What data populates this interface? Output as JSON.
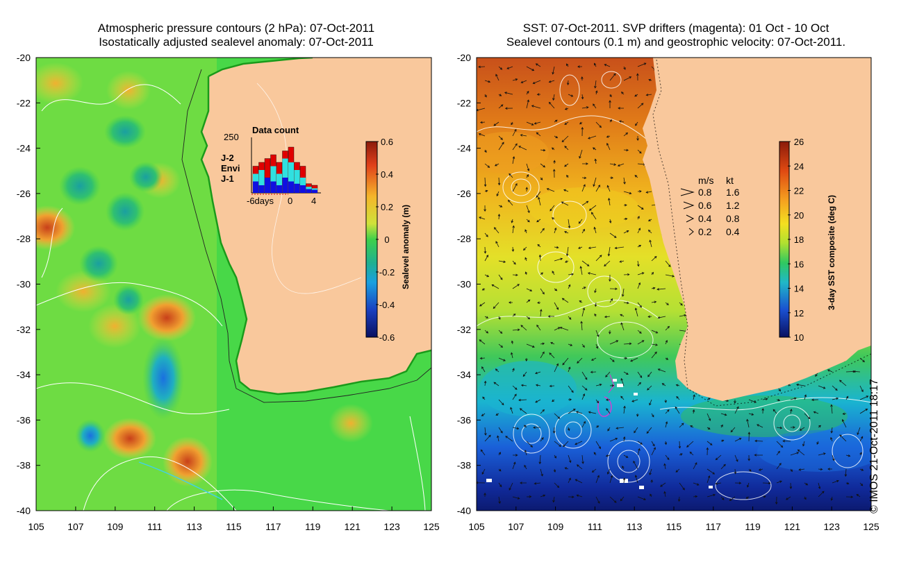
{
  "left_panel": {
    "title_line1": "Atmospheric pressure contours (2 hPa): 07-Oct-2011",
    "title_line2": "Isostatically adjusted sealevel anomaly: 07-Oct-2011",
    "colorbar_label": "Sealevel anomaly (m)",
    "colorbar_ticks": [
      "0.6",
      "0.4",
      "0.2",
      "0",
      "-0.2",
      "-0.4",
      "-0.6"
    ],
    "inset": {
      "title": "Data count",
      "y_max_label": "250",
      "legend": [
        {
          "label": "J-2",
          "color": "#e00000"
        },
        {
          "label": "Envi",
          "color": "#30e0e0"
        },
        {
          "label": "J-1",
          "color": "#1010e0"
        }
      ],
      "x_labels": [
        "-6days",
        "0",
        "4"
      ]
    }
  },
  "right_panel": {
    "title_line1": "SST: 07-Oct-2011. SVP drifters (magenta): 01 Oct - 10 Oct",
    "title_line2": "Sealevel contours (0.1 m) and geostrophic velocity: 07-Oct-2011.",
    "colorbar_label": "3-day SST composite (deg C)",
    "colorbar_ticks": [
      "26",
      "24",
      "22",
      "20",
      "18",
      "16",
      "14",
      "12",
      "10"
    ],
    "speed_legend": {
      "header_ms": "m/s",
      "header_kt": "kt",
      "rows": [
        {
          "ms": "0.8",
          "kt": "1.6"
        },
        {
          "ms": "0.6",
          "kt": "1.2"
        },
        {
          "ms": "0.4",
          "kt": "0.8"
        },
        {
          "ms": "0.2",
          "kt": "0.4"
        }
      ]
    }
  },
  "axes": {
    "lat_labels": [
      "-20",
      "-22",
      "-24",
      "-26",
      "-28",
      "-30",
      "-32",
      "-34",
      "-36",
      "-38",
      "-40"
    ],
    "lon_labels": [
      "105",
      "107",
      "109",
      "111",
      "113",
      "115",
      "117",
      "119",
      "121",
      "123",
      "125"
    ]
  },
  "copyright": "© IMOS 21-Oct-2011 18:17",
  "colors": {
    "land": "#f9c89c",
    "coast_green": "#22dd22"
  }
}
